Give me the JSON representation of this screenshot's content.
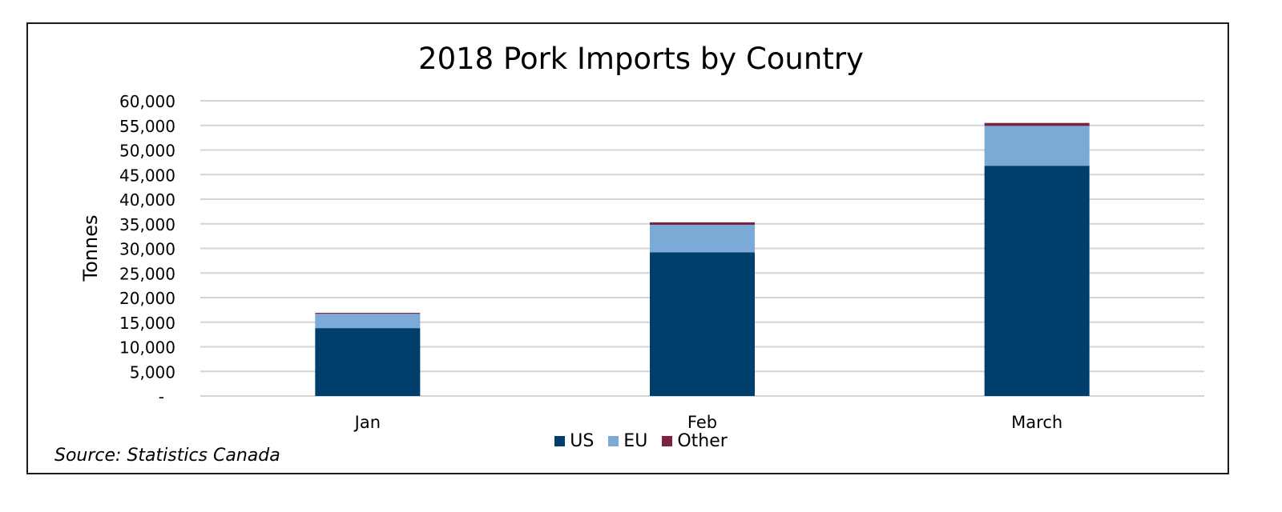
{
  "chart_data": {
    "type": "bar",
    "stacked": true,
    "title": "2018 Pork Imports by Country",
    "xlabel": "",
    "ylabel": "Tonnes",
    "categories": [
      "Jan",
      "Feb",
      "March"
    ],
    "series": [
      {
        "name": "US",
        "color": "#003f6b",
        "values": [
          13800,
          29200,
          46800
        ]
      },
      {
        "name": "EU",
        "color": "#7baad6",
        "values": [
          2900,
          5600,
          8100
        ]
      },
      {
        "name": "Other",
        "color": "#7b2347",
        "values": [
          200,
          500,
          600
        ]
      }
    ],
    "ylim": [
      0,
      60000
    ],
    "yticks": [
      {
        "value": 0,
        "label": "-"
      },
      {
        "value": 5000,
        "label": "5,000"
      },
      {
        "value": 10000,
        "label": "10,000"
      },
      {
        "value": 15000,
        "label": "15,000"
      },
      {
        "value": 20000,
        "label": "20,000"
      },
      {
        "value": 25000,
        "label": "25,000"
      },
      {
        "value": 30000,
        "label": "30,000"
      },
      {
        "value": 35000,
        "label": "35,000"
      },
      {
        "value": 40000,
        "label": "40,000"
      },
      {
        "value": 45000,
        "label": "45,000"
      },
      {
        "value": 50000,
        "label": "50,000"
      },
      {
        "value": 55000,
        "label": "55,000"
      },
      {
        "value": 60000,
        "label": "60,000"
      }
    ],
    "grid": true,
    "legend_position": "bottom",
    "source": "Source: Statistics Canada"
  }
}
